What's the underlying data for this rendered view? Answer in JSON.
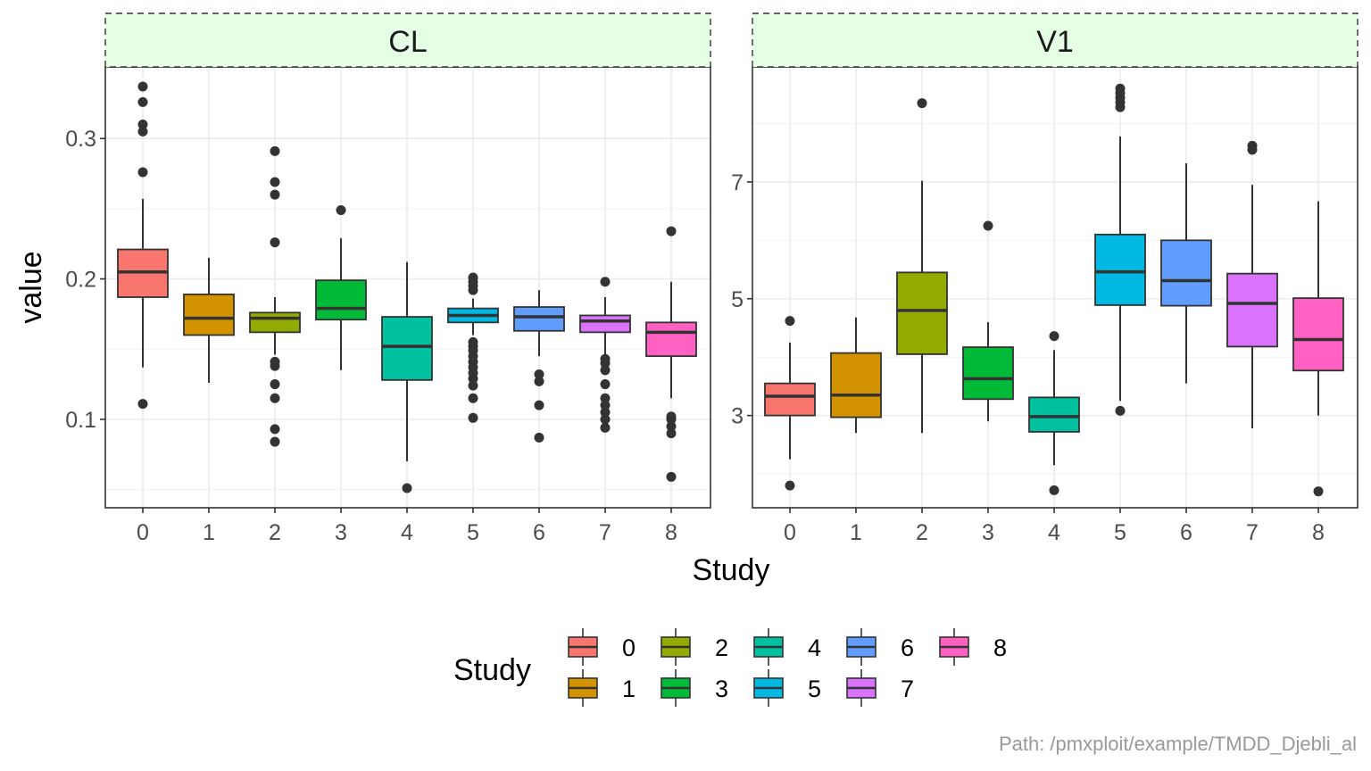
{
  "chart_data": {
    "type": "boxplot",
    "xlabel": "Study",
    "ylabel": "value",
    "caption": "Path: /pmxploit/example/TMDD_Djebli_al",
    "colors": [
      "#F8766D",
      "#D39200",
      "#93AA00",
      "#00BA38",
      "#00C19F",
      "#00B9E3",
      "#619CFF",
      "#DB72FB",
      "#FF61C3"
    ],
    "legend": {
      "title": "Study",
      "position": "bottom",
      "entries": [
        "0",
        "1",
        "2",
        "3",
        "4",
        "5",
        "6",
        "7",
        "8"
      ]
    },
    "panels": [
      {
        "label": "CL",
        "ylim": [
          0.037,
          0.351
        ],
        "yticks": [
          0.1,
          0.2,
          0.3
        ],
        "ytick_labels": [
          "0.1",
          "0.2",
          "0.3"
        ],
        "categories": [
          "0",
          "1",
          "2",
          "3",
          "4",
          "5",
          "6",
          "7",
          "8"
        ],
        "boxes": [
          {
            "study": "0",
            "lower_whisker": 0.137,
            "q1": 0.187,
            "median": 0.205,
            "q3": 0.221,
            "upper_whisker": 0.257,
            "outliers": [
              0.111,
              0.276,
              0.305,
              0.31,
              0.326,
              0.337
            ]
          },
          {
            "study": "1",
            "lower_whisker": 0.126,
            "q1": 0.16,
            "median": 0.172,
            "q3": 0.189,
            "upper_whisker": 0.215,
            "outliers": []
          },
          {
            "study": "2",
            "lower_whisker": 0.146,
            "q1": 0.162,
            "median": 0.172,
            "q3": 0.176,
            "upper_whisker": 0.187,
            "outliers": [
              0.084,
              0.093,
              0.115,
              0.125,
              0.138,
              0.141,
              0.226,
              0.26,
              0.269,
              0.291
            ]
          },
          {
            "study": "3",
            "lower_whisker": 0.135,
            "q1": 0.171,
            "median": 0.179,
            "q3": 0.199,
            "upper_whisker": 0.229,
            "outliers": [
              0.249
            ]
          },
          {
            "study": "4",
            "lower_whisker": 0.07,
            "q1": 0.128,
            "median": 0.152,
            "q3": 0.173,
            "upper_whisker": 0.212,
            "outliers": [
              0.051
            ]
          },
          {
            "study": "5",
            "lower_whisker": 0.16,
            "q1": 0.169,
            "median": 0.174,
            "q3": 0.179,
            "upper_whisker": 0.186,
            "outliers": [
              0.101,
              0.115,
              0.124,
              0.129,
              0.133,
              0.137,
              0.141,
              0.145,
              0.149,
              0.152,
              0.155,
              0.192,
              0.195,
              0.198,
              0.201
            ]
          },
          {
            "study": "6",
            "lower_whisker": 0.145,
            "q1": 0.163,
            "median": 0.173,
            "q3": 0.18,
            "upper_whisker": 0.192,
            "outliers": [
              0.087,
              0.11,
              0.127,
              0.132
            ]
          },
          {
            "study": "7",
            "lower_whisker": 0.145,
            "q1": 0.162,
            "median": 0.17,
            "q3": 0.174,
            "upper_whisker": 0.187,
            "outliers": [
              0.094,
              0.1,
              0.105,
              0.11,
              0.115,
              0.125,
              0.135,
              0.14,
              0.143,
              0.198
            ]
          },
          {
            "study": "8",
            "lower_whisker": 0.115,
            "q1": 0.145,
            "median": 0.162,
            "q3": 0.169,
            "upper_whisker": 0.198,
            "outliers": [
              0.059,
              0.09,
              0.095,
              0.1,
              0.102,
              0.234
            ]
          }
        ]
      },
      {
        "label": "V1",
        "ylim": [
          1.42,
          8.97
        ],
        "yticks": [
          3,
          5,
          7
        ],
        "ytick_labels": [
          "3",
          "5",
          "7"
        ],
        "categories": [
          "0",
          "1",
          "2",
          "3",
          "4",
          "5",
          "6",
          "7",
          "8"
        ],
        "boxes": [
          {
            "study": "0",
            "lower_whisker": 2.25,
            "q1": 3.0,
            "median": 3.33,
            "q3": 3.55,
            "upper_whisker": 4.25,
            "outliers": [
              1.8,
              4.62
            ]
          },
          {
            "study": "1",
            "lower_whisker": 2.7,
            "q1": 2.97,
            "median": 3.35,
            "q3": 4.07,
            "upper_whisker": 4.68,
            "outliers": []
          },
          {
            "study": "2",
            "lower_whisker": 2.7,
            "q1": 4.05,
            "median": 4.8,
            "q3": 5.45,
            "upper_whisker": 7.02,
            "outliers": [
              8.35
            ]
          },
          {
            "study": "3",
            "lower_whisker": 2.9,
            "q1": 3.28,
            "median": 3.63,
            "q3": 4.17,
            "upper_whisker": 4.6,
            "outliers": [
              6.25
            ]
          },
          {
            "study": "4",
            "lower_whisker": 2.15,
            "q1": 2.72,
            "median": 2.98,
            "q3": 3.31,
            "upper_whisker": 4.12,
            "outliers": [
              1.72,
              4.36
            ]
          },
          {
            "study": "5",
            "lower_whisker": 3.25,
            "q1": 4.89,
            "median": 5.46,
            "q3": 6.1,
            "upper_whisker": 7.78,
            "outliers": [
              3.08,
              8.28,
              8.36,
              8.44,
              8.52,
              8.6
            ]
          },
          {
            "study": "6",
            "lower_whisker": 3.55,
            "q1": 4.88,
            "median": 5.31,
            "q3": 6.0,
            "upper_whisker": 7.32,
            "outliers": []
          },
          {
            "study": "7",
            "lower_whisker": 2.78,
            "q1": 4.18,
            "median": 4.92,
            "q3": 5.43,
            "upper_whisker": 6.95,
            "outliers": [
              7.55,
              7.62
            ]
          },
          {
            "study": "8",
            "lower_whisker": 3.0,
            "q1": 3.77,
            "median": 4.3,
            "q3": 5.01,
            "upper_whisker": 6.67,
            "outliers": [
              1.7
            ]
          }
        ]
      }
    ]
  }
}
